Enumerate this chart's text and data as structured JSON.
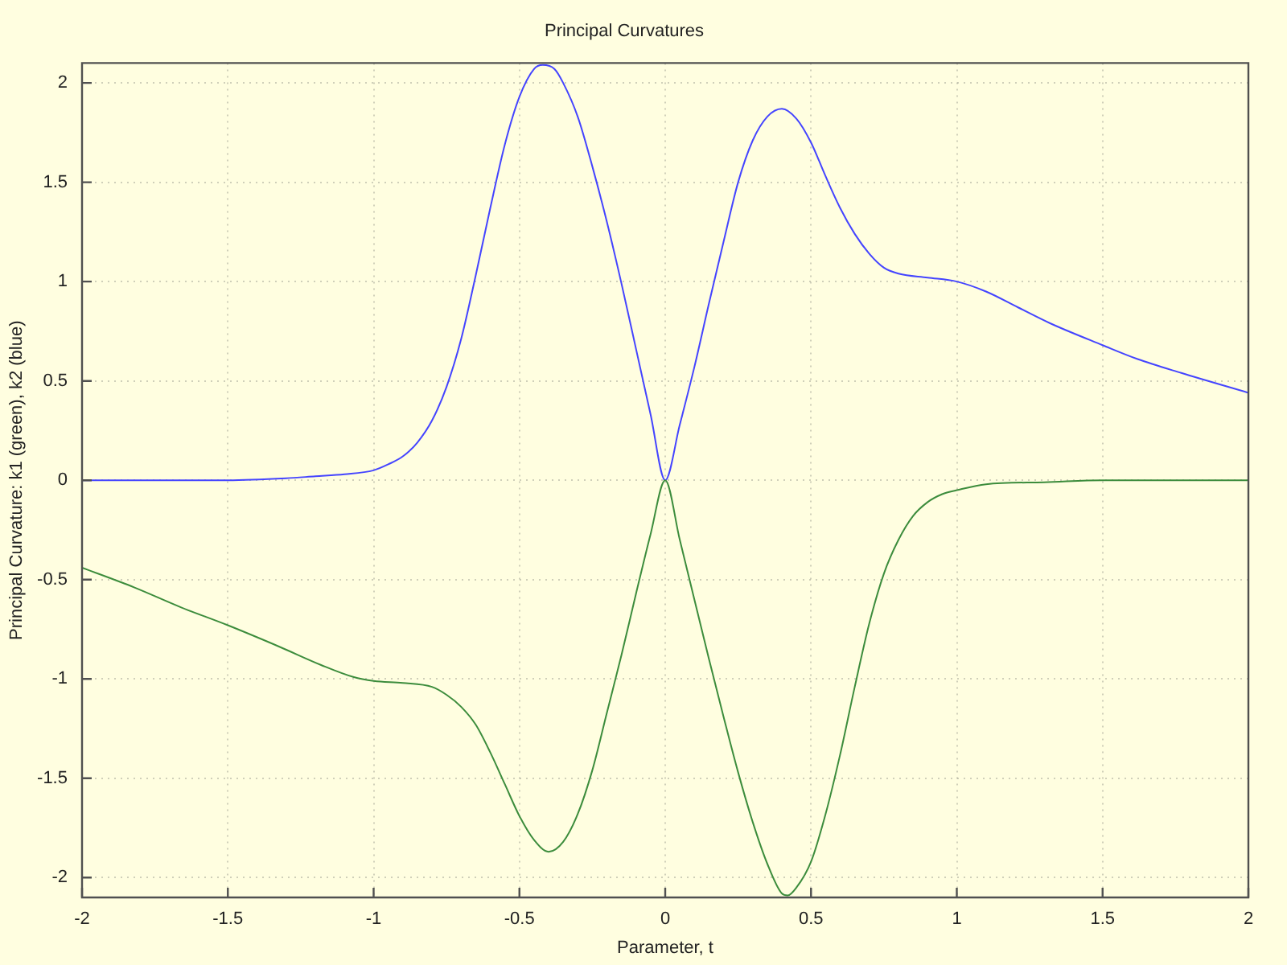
{
  "chart_data": {
    "type": "line",
    "title": "Principal Curvatures",
    "xlabel": "Parameter, t",
    "ylabel": "Principal Curvature: k1 (green), k2 (blue)",
    "xlim": [
      -2,
      2
    ],
    "xticks": [
      -2,
      -1.5,
      -1,
      -0.5,
      0,
      0.5,
      1,
      1.5,
      2
    ],
    "ylim": [
      -2.1,
      2.1
    ],
    "yticks": [
      -2,
      -1.5,
      -1,
      -0.5,
      0,
      0.5,
      1,
      1.5,
      2
    ],
    "grid": true,
    "legend": false,
    "marker": "none",
    "line_style": "solid",
    "series": [
      {
        "color": "#3c8c3c",
        "x": [
          -2,
          -1.82,
          -1.66,
          -1.5,
          -1.32,
          -1.18,
          -1.07,
          -1,
          -0.9,
          -0.8,
          -0.75,
          -0.7,
          -0.65,
          -0.6,
          -0.55,
          -0.5,
          -0.45,
          -0.4,
          -0.35,
          -0.3,
          -0.25,
          -0.2,
          -0.15,
          -0.1,
          -0.05,
          0,
          0.05,
          0.1,
          0.15,
          0.2,
          0.25,
          0.3,
          0.35,
          0.4,
          0.42,
          0.45,
          0.5,
          0.55,
          0.6,
          0.65,
          0.7,
          0.75,
          0.8,
          0.85,
          0.9,
          0.95,
          1,
          1.1,
          1.3,
          1.5,
          1.75,
          2
        ],
        "values": [
          -0.44,
          -0.54,
          -0.64,
          -0.73,
          -0.84,
          -0.93,
          -0.99,
          -1.01,
          -1.02,
          -1.04,
          -1.08,
          -1.14,
          -1.23,
          -1.37,
          -1.53,
          -1.69,
          -1.81,
          -1.87,
          -1.82,
          -1.68,
          -1.46,
          -1.17,
          -0.88,
          -0.57,
          -0.27,
          0,
          -0.3,
          -0.6,
          -0.9,
          -1.19,
          -1.47,
          -1.72,
          -1.93,
          -2.08,
          -2.09,
          -2.05,
          -1.92,
          -1.68,
          -1.38,
          -1.04,
          -0.72,
          -0.47,
          -0.3,
          -0.18,
          -0.11,
          -0.07,
          -0.05,
          -0.02,
          -0.01,
          0,
          0,
          0
        ]
      },
      {
        "color": "#4444ff",
        "x": [
          -2,
          -1.75,
          -1.5,
          -1.3,
          -1.2,
          -1.1,
          -1,
          -0.95,
          -0.9,
          -0.85,
          -0.8,
          -0.75,
          -0.7,
          -0.65,
          -0.6,
          -0.55,
          -0.5,
          -0.45,
          -0.42,
          -0.38,
          -0.35,
          -0.3,
          -0.25,
          -0.2,
          -0.15,
          -0.1,
          -0.05,
          0,
          0.05,
          0.1,
          0.15,
          0.2,
          0.25,
          0.3,
          0.35,
          0.4,
          0.45,
          0.5,
          0.55,
          0.6,
          0.65,
          0.7,
          0.75,
          0.8,
          0.9,
          1,
          1.1,
          1.21,
          1.32,
          1.5,
          1.62,
          1.77,
          2
        ],
        "values": [
          0,
          0,
          0,
          0.01,
          0.02,
          0.03,
          0.05,
          0.08,
          0.12,
          0.19,
          0.3,
          0.47,
          0.71,
          1.03,
          1.37,
          1.69,
          1.93,
          2.07,
          2.09,
          2.07,
          2,
          1.83,
          1.58,
          1.3,
          0.99,
          0.66,
          0.33,
          0,
          0.28,
          0.57,
          0.89,
          1.2,
          1.5,
          1.71,
          1.83,
          1.87,
          1.82,
          1.7,
          1.53,
          1.37,
          1.24,
          1.14,
          1.07,
          1.04,
          1.02,
          1,
          0.95,
          0.87,
          0.79,
          0.68,
          0.61,
          0.54,
          0.44
        ]
      }
    ]
  }
}
